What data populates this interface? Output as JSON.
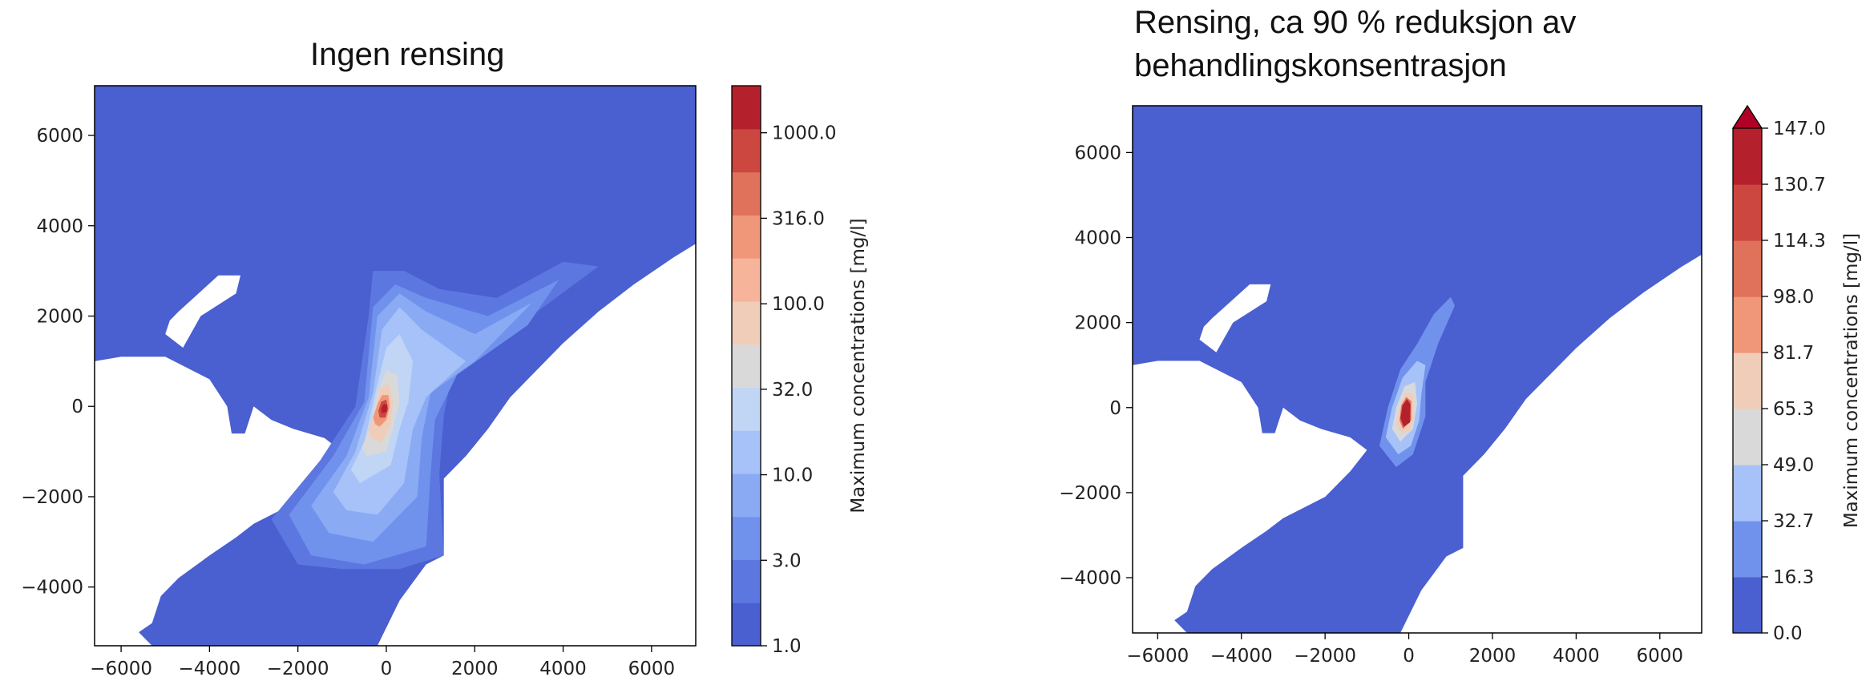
{
  "chart_data": [
    {
      "type": "contour",
      "title": "Ingen rensing",
      "x_ticks": [
        -6000,
        -4000,
        -2000,
        0,
        2000,
        4000,
        6000
      ],
      "y_ticks": [
        6000,
        4000,
        2000,
        0,
        -2000,
        -4000
      ],
      "xlim": [
        -6600,
        7000
      ],
      "ylim": [
        -5300,
        7100
      ],
      "colorbar": {
        "label": "Maximum concentrations [mg/l]",
        "scale": "log",
        "tick_labels": [
          "1000.0",
          "316.0",
          "100.0",
          "32.0",
          "10.0",
          "3.0",
          "1.0"
        ],
        "levels": 13,
        "colors": [
          "#4a5fd0",
          "#5c78e0",
          "#7192ec",
          "#8aaaf4",
          "#a6c2f9",
          "#c1d5f4",
          "#d9d9d9",
          "#f0cdb9",
          "#f6b49a",
          "#f09779",
          "#e0715a",
          "#cc4740",
          "#b4212d"
        ]
      }
    },
    {
      "type": "contour",
      "title": "Rensing, ca 90 % reduksjon av behandlingskonsentrasjon",
      "title_lines": [
        "Rensing, ca 90 % reduksjon av",
        "behandlingskonsentrasjon"
      ],
      "x_ticks": [
        -6000,
        -4000,
        -2000,
        0,
        2000,
        4000,
        6000
      ],
      "y_ticks": [
        6000,
        4000,
        2000,
        0,
        -2000,
        -4000
      ],
      "xlim": [
        -6600,
        7000
      ],
      "ylim": [
        -5300,
        7100
      ],
      "colorbar": {
        "label": "Maximum concentrations [mg/l]",
        "scale": "linear",
        "extend": "max",
        "tick_labels": [
          "147.0",
          "130.7",
          "114.3",
          "98.0",
          "81.7",
          "65.3",
          "49.0",
          "32.7",
          "16.3",
          "0.0"
        ],
        "levels": 9,
        "colors": [
          "#4a5fd0",
          "#7192ec",
          "#a6c2f9",
          "#d9d9d9",
          "#f0cdb9",
          "#f09779",
          "#e0715a",
          "#cc4740",
          "#b4212d"
        ],
        "extend_color": "#b00026"
      }
    }
  ]
}
